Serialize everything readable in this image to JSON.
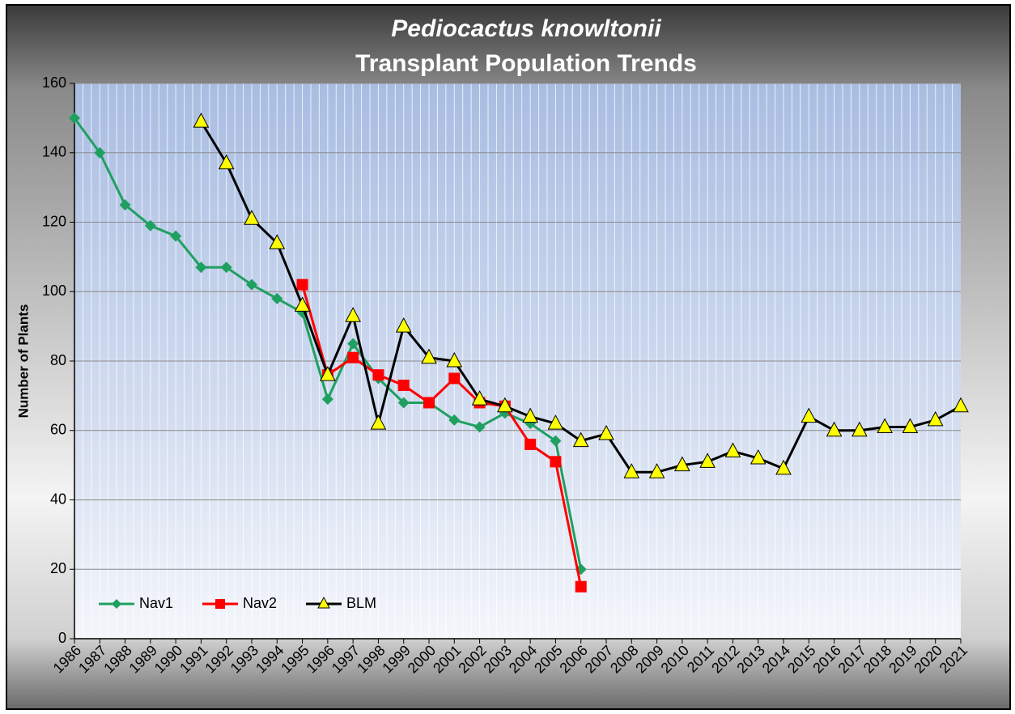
{
  "chart_data": {
    "type": "line",
    "title": "Pediocactus knowltonii",
    "subtitle": "Transplant Population Trends",
    "y_label": "Number of Plants",
    "categories": [
      "1986",
      "1987",
      "1988",
      "1989",
      "1990",
      "1991",
      "1992",
      "1993",
      "1994",
      "1995",
      "1996",
      "1997",
      "1998",
      "1999",
      "2000",
      "2001",
      "2002",
      "2003",
      "2004",
      "2005",
      "2006",
      "2007",
      "2008",
      "2009",
      "2010",
      "2011",
      "2012",
      "2013",
      "2014",
      "2015",
      "2016",
      "2017",
      "2018",
      "2019",
      "2020",
      "2021"
    ],
    "series": [
      {
        "name": "Nav1",
        "color": "#1fa060",
        "marker": "diamond",
        "values": [
          150,
          140,
          125,
          119,
          116,
          107,
          107,
          102,
          98,
          94,
          69,
          85,
          75,
          68,
          68,
          63,
          61,
          65,
          62,
          57,
          20,
          null,
          null,
          null,
          null,
          null,
          null,
          null,
          null,
          null,
          null,
          null,
          null,
          null,
          null,
          null
        ]
      },
      {
        "name": "Nav2",
        "color": "#ff0000",
        "marker": "square",
        "values": [
          null,
          null,
          null,
          null,
          null,
          null,
          null,
          null,
          null,
          102,
          76,
          81,
          76,
          73,
          68,
          75,
          68,
          67,
          56,
          51,
          15,
          null,
          null,
          null,
          null,
          null,
          null,
          null,
          null,
          null,
          null,
          null,
          null,
          null,
          null,
          null
        ]
      },
      {
        "name": "BLM",
        "color": "#000000",
        "marker": "triangle",
        "marker_color": "#ffff00",
        "values": [
          null,
          null,
          null,
          null,
          null,
          149,
          137,
          121,
          114,
          96,
          76,
          93,
          62,
          90,
          81,
          80,
          69,
          67,
          64,
          62,
          57,
          59,
          48,
          48,
          50,
          51,
          54,
          52,
          49,
          64,
          60,
          60,
          61,
          61,
          63,
          67
        ]
      }
    ],
    "ylim": [
      0,
      160
    ],
    "yticks": [
      0,
      20,
      40,
      60,
      80,
      100,
      120,
      140,
      160
    ],
    "grid": true,
    "legend": "lower left"
  }
}
